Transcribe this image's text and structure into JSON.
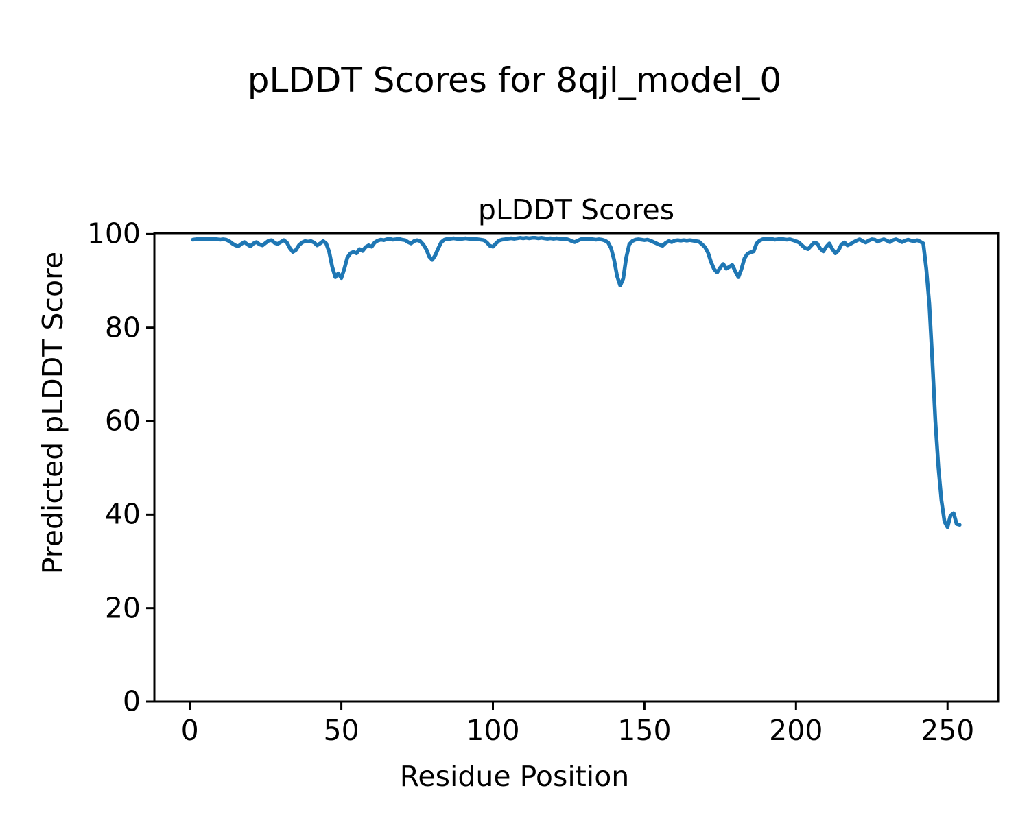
{
  "figure": {
    "suptitle": "pLDDT Scores for 8qjl_model_0"
  },
  "chart_data": {
    "type": "line",
    "title": "pLDDT Scores",
    "xlabel": "Residue Position",
    "ylabel": "Predicted pLDDT Score",
    "xlim": [
      -11.7,
      266.7
    ],
    "ylim": [
      0,
      100.2
    ],
    "xticks": [
      0,
      50,
      100,
      150,
      200,
      250
    ],
    "yticks": [
      0,
      20,
      40,
      60,
      80,
      100
    ],
    "grid": false,
    "legend": "none",
    "line_color": "#1f77b4",
    "axis_color": "#000000",
    "series": [
      {
        "name": "pLDDT",
        "x_start": 1,
        "x_step": 1,
        "values": [
          98.8,
          98.9,
          99.0,
          98.9,
          99.0,
          99.0,
          98.9,
          99.0,
          98.9,
          98.8,
          98.9,
          98.8,
          98.5,
          98.0,
          97.6,
          97.4,
          97.9,
          98.3,
          97.8,
          97.4,
          98.0,
          98.3,
          97.8,
          97.6,
          98.1,
          98.6,
          98.7,
          98.1,
          97.9,
          98.3,
          98.7,
          98.2,
          97.0,
          96.2,
          96.6,
          97.6,
          98.2,
          98.5,
          98.4,
          98.5,
          98.2,
          97.6,
          98.0,
          98.5,
          98.0,
          96.2,
          93.0,
          90.8,
          91.6,
          90.6,
          92.6,
          95.0,
          95.9,
          96.2,
          95.9,
          96.8,
          96.4,
          97.2,
          97.6,
          97.3,
          98.2,
          98.6,
          98.8,
          98.7,
          98.9,
          99.0,
          98.8,
          98.9,
          99.0,
          98.8,
          98.7,
          98.3,
          98.0,
          98.5,
          98.7,
          98.5,
          97.8,
          96.8,
          95.2,
          94.5,
          95.5,
          97.0,
          98.3,
          98.8,
          99.0,
          99.0,
          99.1,
          99.0,
          98.9,
          99.0,
          99.1,
          99.0,
          98.9,
          99.0,
          98.9,
          98.8,
          98.7,
          98.2,
          97.5,
          97.3,
          98.0,
          98.6,
          98.8,
          98.9,
          99.0,
          99.1,
          99.0,
          99.1,
          99.2,
          99.1,
          99.2,
          99.1,
          99.2,
          99.2,
          99.1,
          99.2,
          99.1,
          99.0,
          99.1,
          99.0,
          99.1,
          99.0,
          98.9,
          99.0,
          98.8,
          98.5,
          98.3,
          98.6,
          98.9,
          99.0,
          98.9,
          99.0,
          98.9,
          98.8,
          98.9,
          98.8,
          98.6,
          98.2,
          97.0,
          94.5,
          91.0,
          89.0,
          90.5,
          95.0,
          97.8,
          98.5,
          98.8,
          98.9,
          98.8,
          98.7,
          98.8,
          98.6,
          98.3,
          98.0,
          97.7,
          97.5,
          98.1,
          98.5,
          98.3,
          98.6,
          98.7,
          98.6,
          98.7,
          98.6,
          98.7,
          98.6,
          98.5,
          98.4,
          97.8,
          97.2,
          96.0,
          94.0,
          92.5,
          91.8,
          92.8,
          93.6,
          92.6,
          93.0,
          93.4,
          92.0,
          90.8,
          92.5,
          94.8,
          95.8,
          96.1,
          96.3,
          98.0,
          98.6,
          98.9,
          99.0,
          98.9,
          99.0,
          98.8,
          98.9,
          99.0,
          98.9,
          98.8,
          98.9,
          98.7,
          98.5,
          98.2,
          97.6,
          97.0,
          96.8,
          97.5,
          98.2,
          98.0,
          96.9,
          96.3,
          97.3,
          98.0,
          96.8,
          95.9,
          96.5,
          97.8,
          98.2,
          97.6,
          97.9,
          98.3,
          98.6,
          98.9,
          98.5,
          98.2,
          98.6,
          98.9,
          98.8,
          98.4,
          98.7,
          98.9,
          98.6,
          98.3,
          98.7,
          98.9,
          98.6,
          98.3,
          98.6,
          98.8,
          98.6,
          98.5,
          98.7,
          98.4,
          98.0,
          92.5,
          85.0,
          73.0,
          60.0,
          50.0,
          43.0,
          38.5,
          37.3,
          39.8,
          40.3,
          38.0,
          37.8
        ]
      }
    ]
  }
}
